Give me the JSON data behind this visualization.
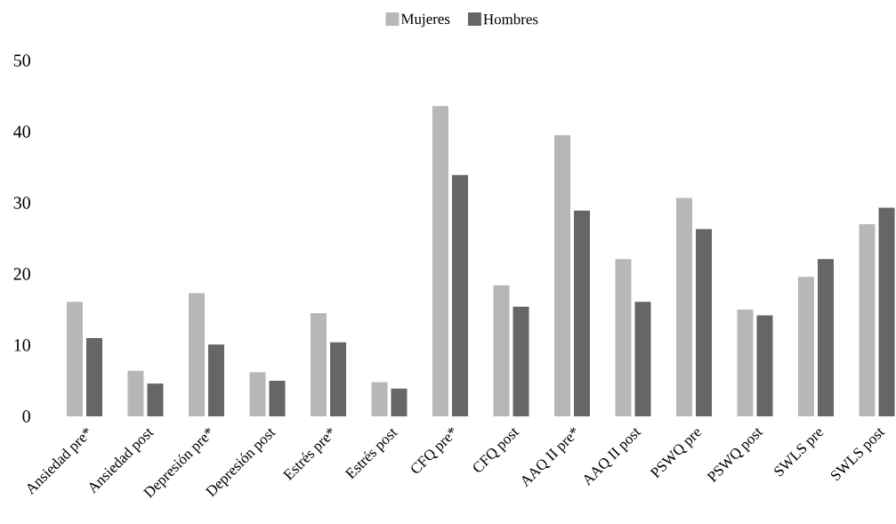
{
  "chart_data": {
    "type": "bar",
    "categories": [
      "Ansiedad pre*",
      "Ansiedad post",
      "Depresión pre*",
      "Depresión post",
      "Estrés pre*",
      "Estrés post",
      "CFQ pre*",
      "CFQ post",
      "AAQ II pre*",
      "AAQ II post",
      "PSWQ pre",
      "PSWQ post",
      "SWLS pre",
      "SWLS post"
    ],
    "series": [
      {
        "name": "Mujeres",
        "color": "#b7b7b7",
        "values": [
          16.1,
          6.4,
          17.3,
          6.2,
          14.5,
          4.8,
          43.6,
          18.4,
          39.5,
          22.1,
          30.7,
          15.0,
          19.6,
          27.0
        ]
      },
      {
        "name": "Hombres",
        "color": "#666666",
        "values": [
          11.0,
          4.6,
          10.1,
          5.0,
          10.4,
          3.9,
          33.9,
          15.4,
          28.9,
          16.1,
          26.3,
          14.2,
          22.1,
          29.3
        ]
      }
    ],
    "ylim": [
      0,
      50
    ],
    "yticks": [
      0,
      10,
      20,
      30,
      40,
      50
    ],
    "legend": "top"
  }
}
